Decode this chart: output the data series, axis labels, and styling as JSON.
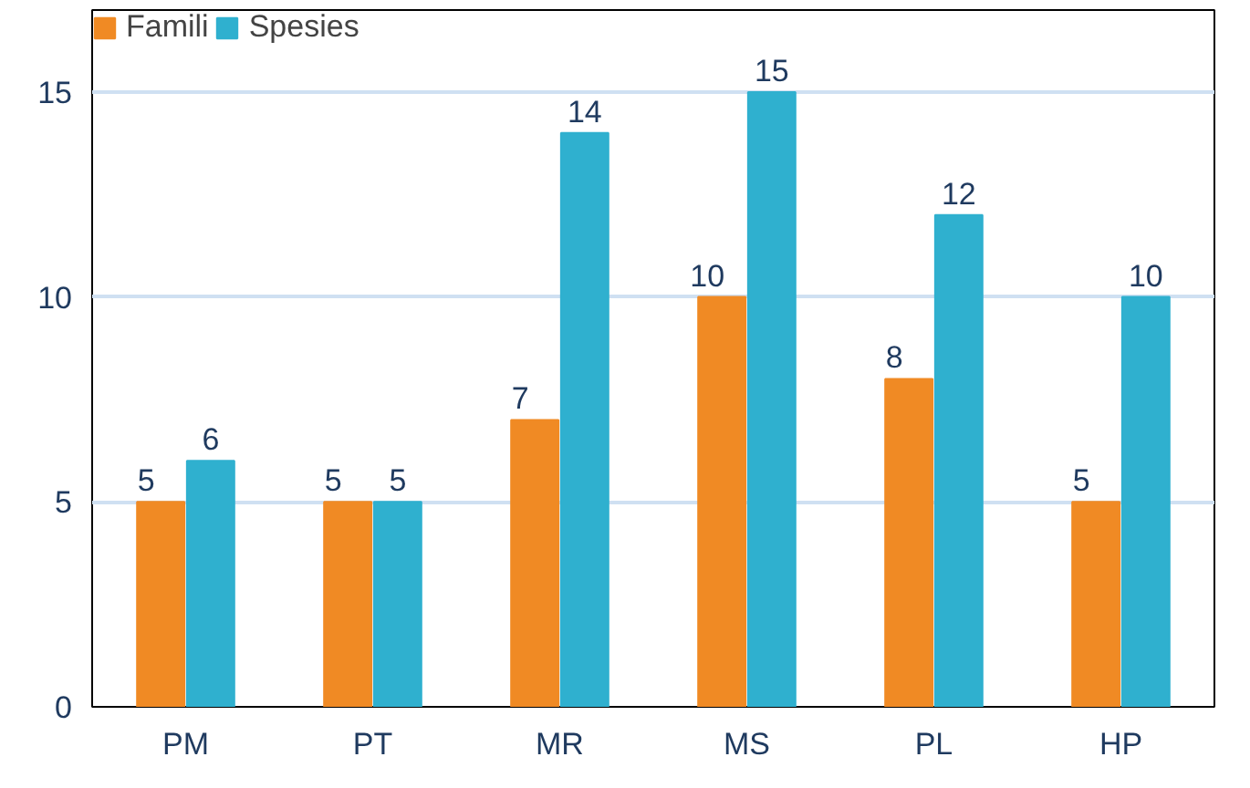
{
  "chart_data": {
    "type": "bar",
    "categories": [
      "PM",
      "PT",
      "MR",
      "MS",
      "PL",
      "HP"
    ],
    "series": [
      {
        "name": "Famili",
        "color": "#f08a24",
        "values": [
          5,
          5,
          7,
          10,
          8,
          5
        ]
      },
      {
        "name": "Spesies",
        "color": "#2fb0cf",
        "values": [
          6,
          5,
          14,
          15,
          12,
          10
        ]
      }
    ],
    "ylim": [
      0,
      17
    ],
    "yticks": [
      0,
      5,
      10,
      15
    ],
    "grid": "y",
    "legend": "top left",
    "data_labels": true
  }
}
